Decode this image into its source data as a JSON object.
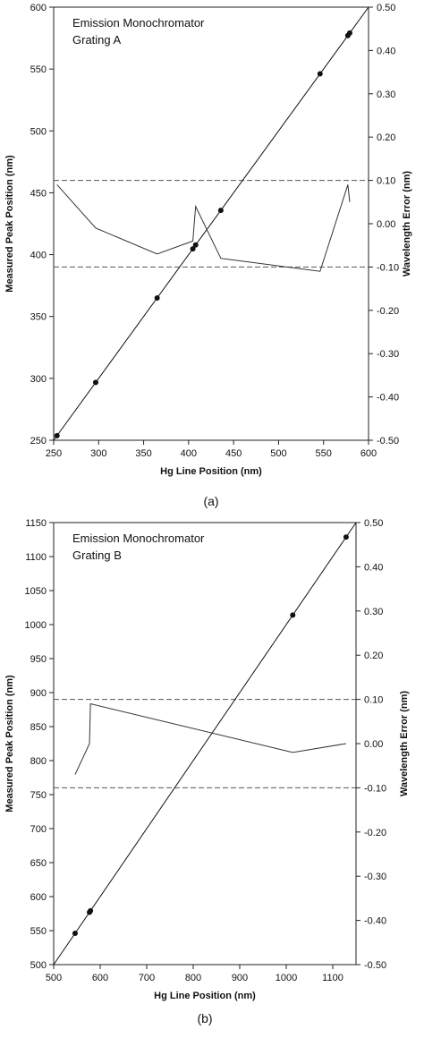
{
  "chart_data": [
    {
      "type": "scatter",
      "panel_label": "(a)",
      "annotation_lines": [
        "Emission Monochromator",
        "Grating A"
      ],
      "xlabel": "Hg Line Position (nm)",
      "ylabel": "Measured Peak Position (nm)",
      "y2label": "Wavelength Error (nm)",
      "xlim": [
        250,
        600
      ],
      "ylim": [
        250,
        600
      ],
      "y2lim": [
        -0.5,
        0.5
      ],
      "xticks": [
        "250",
        "300",
        "350",
        "400",
        "450",
        "500",
        "550",
        "600"
      ],
      "yticks": [
        "250",
        "300",
        "350",
        "400",
        "450",
        "500",
        "550",
        "600"
      ],
      "y2ticks": [
        "-0.50",
        "-0.40",
        "-0.30",
        "-0.20",
        "-0.10",
        "0.00",
        "0.10",
        "0.20",
        "0.30",
        "0.40",
        "0.50"
      ],
      "fit_line": {
        "x": [
          250,
          600
        ],
        "y": [
          250,
          600
        ]
      },
      "points": {
        "x": [
          253.7,
          296.7,
          365.0,
          404.7,
          407.8,
          435.8,
          546.1,
          577.0,
          579.1
        ],
        "y": [
          253.7,
          296.7,
          365.0,
          404.7,
          407.8,
          435.8,
          546.1,
          577.0,
          579.1
        ]
      },
      "error_series": {
        "x": [
          253.7,
          296.7,
          365.0,
          404.7,
          407.8,
          435.8,
          546.1,
          577.0,
          579.1
        ],
        "y": [
          0.09,
          -0.01,
          -0.07,
          -0.04,
          0.04,
          -0.08,
          -0.11,
          0.09,
          0.05
        ]
      },
      "reference_lines_y2": [
        0.1,
        -0.1
      ]
    },
    {
      "type": "scatter",
      "panel_label": "(b)",
      "annotation_lines": [
        "Emission Monochromator",
        "Grating B"
      ],
      "xlabel": "Hg Line Position (nm)",
      "ylabel": "Measured Peak Position (nm)",
      "y2label": "Wavelength Error (nm)",
      "xlim": [
        500,
        1150
      ],
      "ylim": [
        500,
        1150
      ],
      "y2lim": [
        -0.5,
        0.5
      ],
      "xticks": [
        "500",
        "600",
        "700",
        "800",
        "900",
        "1000",
        "1100"
      ],
      "yticks": [
        "500",
        "550",
        "600",
        "650",
        "700",
        "750",
        "800",
        "850",
        "900",
        "950",
        "1000",
        "1050",
        "1100",
        "1150"
      ],
      "y2ticks": [
        "-0.50",
        "-0.40",
        "-0.30",
        "-0.20",
        "-0.10",
        "0.00",
        "0.10",
        "0.20",
        "0.30",
        "0.40",
        "0.50"
      ],
      "fit_line": {
        "x": [
          500,
          1150
        ],
        "y": [
          500,
          1150
        ]
      },
      "points": {
        "x": [
          546.1,
          577.0,
          579.1,
          1014.0,
          1128.7
        ],
        "y": [
          546.1,
          577.0,
          579.1,
          1014.0,
          1128.7
        ]
      },
      "error_series": {
        "x": [
          546.1,
          577.0,
          579.1,
          1014.0,
          1128.7
        ],
        "y": [
          -0.07,
          0.0,
          0.09,
          -0.02,
          0.0
        ]
      },
      "reference_lines_y2": [
        0.1,
        -0.1
      ]
    }
  ]
}
